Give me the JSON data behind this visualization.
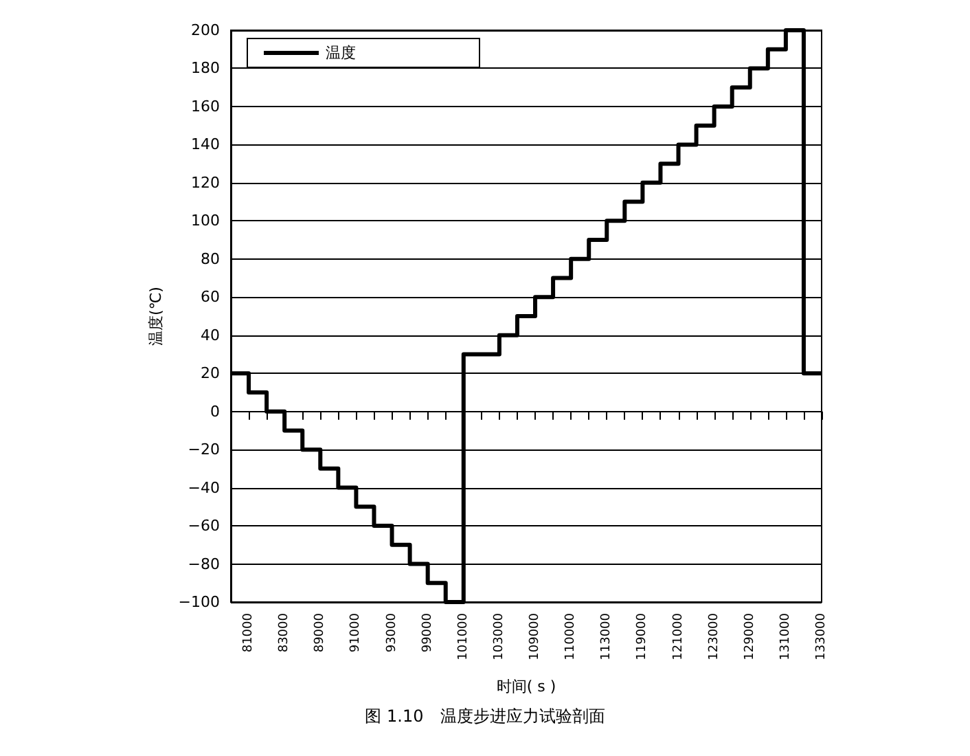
{
  "chart_data": {
    "type": "step",
    "title": "图 1.10　温度步进应力试验剖面",
    "xlabel": "时间( s )",
    "ylabel": "温度(℃)",
    "categories": [
      null,
      "81000",
      null,
      "83000",
      null,
      "89000",
      null,
      "91000",
      null,
      "93000",
      null,
      "99000",
      null,
      "101000",
      null,
      "103000",
      null,
      "109000",
      null,
      "110000",
      null,
      "113000",
      null,
      "119000",
      null,
      "121000",
      null,
      "123000",
      null,
      "129000",
      null,
      "131000",
      null,
      "133000"
    ],
    "series": [
      {
        "name": "温度",
        "color": "#000000",
        "values": [
          20,
          10,
          0,
          -10,
          -20,
          -30,
          -40,
          -50,
          -60,
          -70,
          -80,
          -90,
          -100,
          30,
          30,
          40,
          50,
          60,
          70,
          80,
          90,
          100,
          110,
          120,
          130,
          140,
          150,
          160,
          170,
          180,
          190,
          200,
          20,
          20
        ]
      }
    ],
    "ylim": [
      -100,
      200
    ],
    "yticks": [
      -100,
      -80,
      -60,
      -40,
      -20,
      0,
      20,
      40,
      60,
      80,
      100,
      120,
      140,
      160,
      180,
      200
    ],
    "grid": "y",
    "legend": "top left",
    "marker": "none",
    "line_style": "solid"
  }
}
